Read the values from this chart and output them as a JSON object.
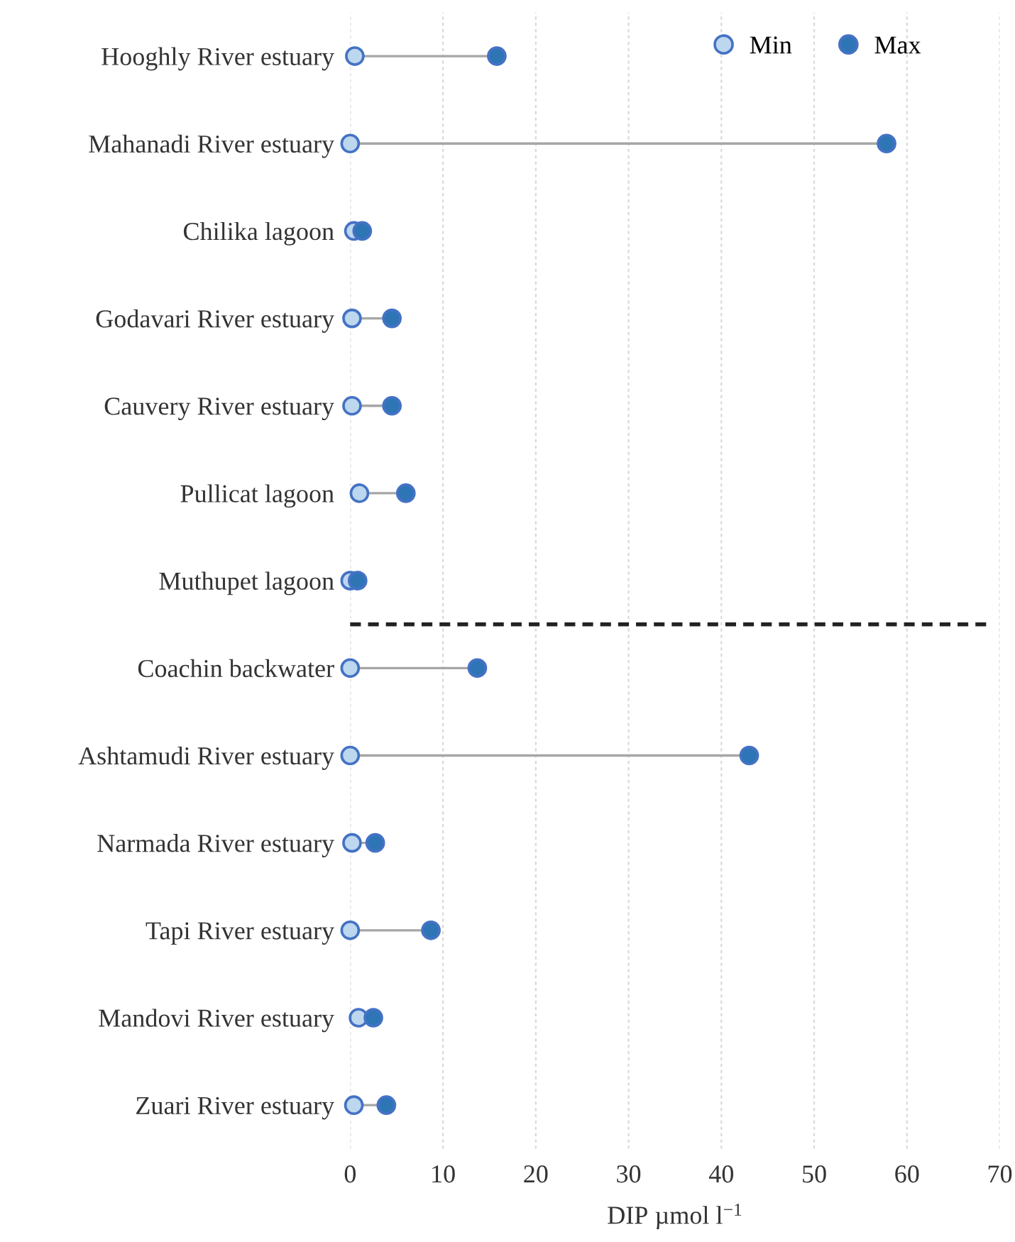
{
  "chart_data": {
    "type": "scatter",
    "orientation": "horizontal",
    "xlabel": "DIP µmol l$^{−1}$",
    "categories": [
      "Hooghly River estuary",
      "Mahanadi River estuary",
      "Chilika lagoon",
      "Godavari River estuary",
      "Cauvery River estuary",
      "Pullicat lagoon",
      "Muthupet lagoon",
      "Coachin backwater",
      "Ashtamudi River estuary",
      "Narmada River estuary",
      "Tapi River estuary",
      "Mandovi River estuary",
      "Zuari River estuary"
    ],
    "series": [
      {
        "name": "Min",
        "color": "#bdd7ee",
        "values": [
          0.5,
          0,
          0.4,
          0.2,
          0.2,
          1.0,
          0,
          0,
          0,
          0.2,
          0,
          0.9,
          0.4
        ]
      },
      {
        "name": "Max",
        "color": "#2e75b6",
        "values": [
          15.8,
          57.8,
          1.3,
          4.5,
          4.5,
          6.0,
          0.8,
          13.7,
          43.0,
          2.7,
          8.7,
          2.5,
          3.9
        ]
      }
    ],
    "xlim": [
      0,
      70
    ],
    "xticks": [
      0,
      10,
      20,
      30,
      40,
      50,
      60,
      70
    ],
    "grid": "x",
    "legend": "top right",
    "marker": "circle"
  }
}
